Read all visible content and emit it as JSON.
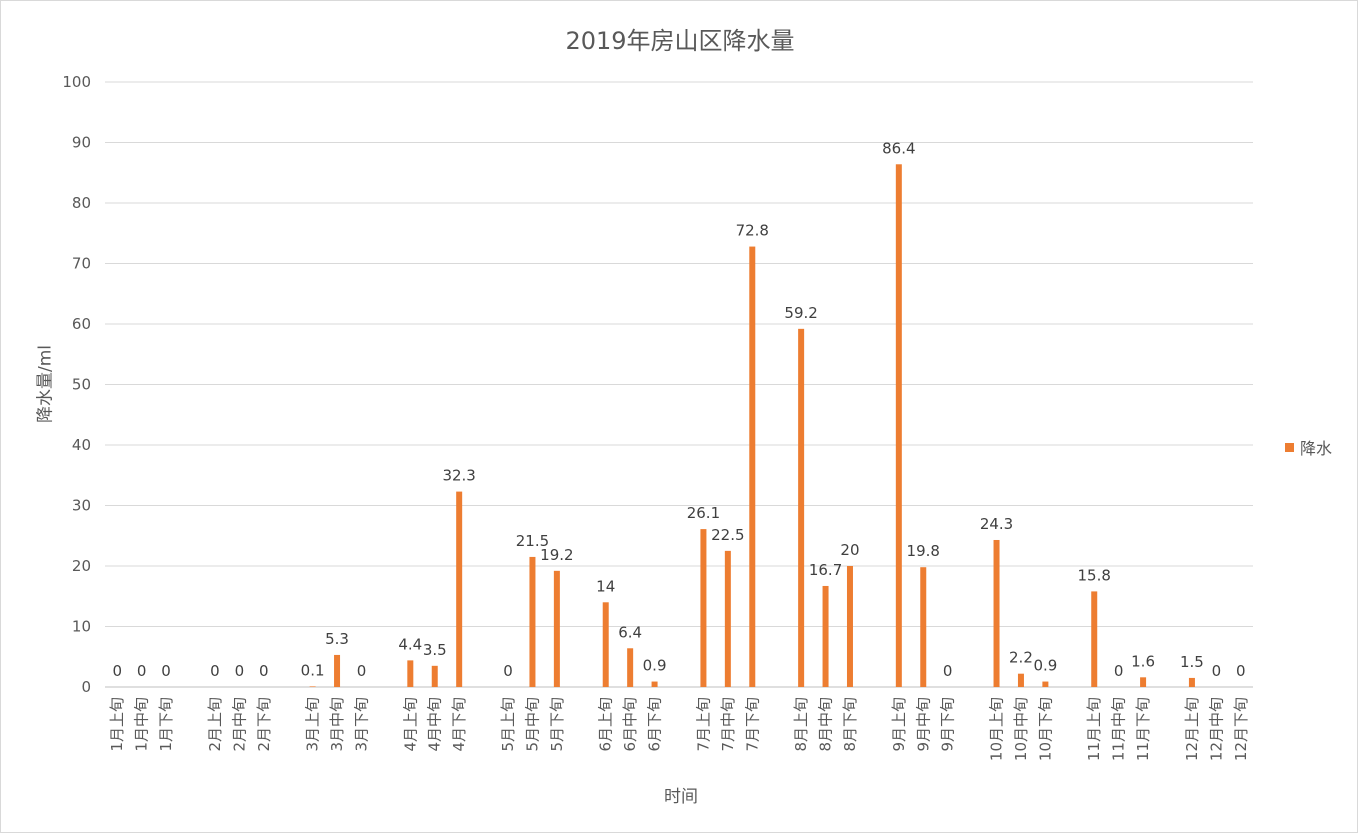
{
  "chart_data": {
    "type": "bar",
    "title": "2019年房山区降水量",
    "xlabel": "时间",
    "ylabel": "降水量/ml",
    "ylim": [
      0,
      100
    ],
    "yticks": [
      0,
      10,
      20,
      30,
      40,
      50,
      60,
      70,
      80,
      90,
      100
    ],
    "grid": true,
    "legend_position": "right",
    "bar_color": "#ed7d31",
    "groups": [
      [
        "1月上旬",
        "1月中旬",
        "1月下旬"
      ],
      [
        "2月上旬",
        "2月中旬",
        "2月下旬"
      ],
      [
        "3月上旬",
        "3月中旬",
        "3月下旬"
      ],
      [
        "4月上旬",
        "4月中旬",
        "4月下旬"
      ],
      [
        "5月上旬",
        "5月中旬",
        "5月下旬"
      ],
      [
        "6月上旬",
        "6月中旬",
        "6月下旬"
      ],
      [
        "7月上旬",
        "7月中旬",
        "7月下旬"
      ],
      [
        "8月上旬",
        "8月中旬",
        "8月下旬"
      ],
      [
        "9月上旬",
        "9月中旬",
        "9月下旬"
      ],
      [
        "10月上旬",
        "10月中旬",
        "10月下旬"
      ],
      [
        "11月上旬",
        "11月中旬",
        "11月下旬"
      ],
      [
        "12月上旬",
        "12月中旬",
        "12月下旬"
      ]
    ],
    "series": [
      {
        "name": "降水",
        "values": [
          [
            0,
            0,
            0
          ],
          [
            0,
            0,
            0
          ],
          [
            0.1,
            5.3,
            0
          ],
          [
            4.4,
            3.5,
            32.3
          ],
          [
            0,
            21.5,
            19.2
          ],
          [
            14,
            6.4,
            0.9
          ],
          [
            26.1,
            22.5,
            72.8
          ],
          [
            59.2,
            16.7,
            20
          ],
          [
            86.4,
            19.8,
            0
          ],
          [
            24.3,
            2.2,
            0.9
          ],
          [
            15.8,
            0,
            1.6
          ],
          [
            1.5,
            0,
            0
          ]
        ]
      }
    ]
  }
}
